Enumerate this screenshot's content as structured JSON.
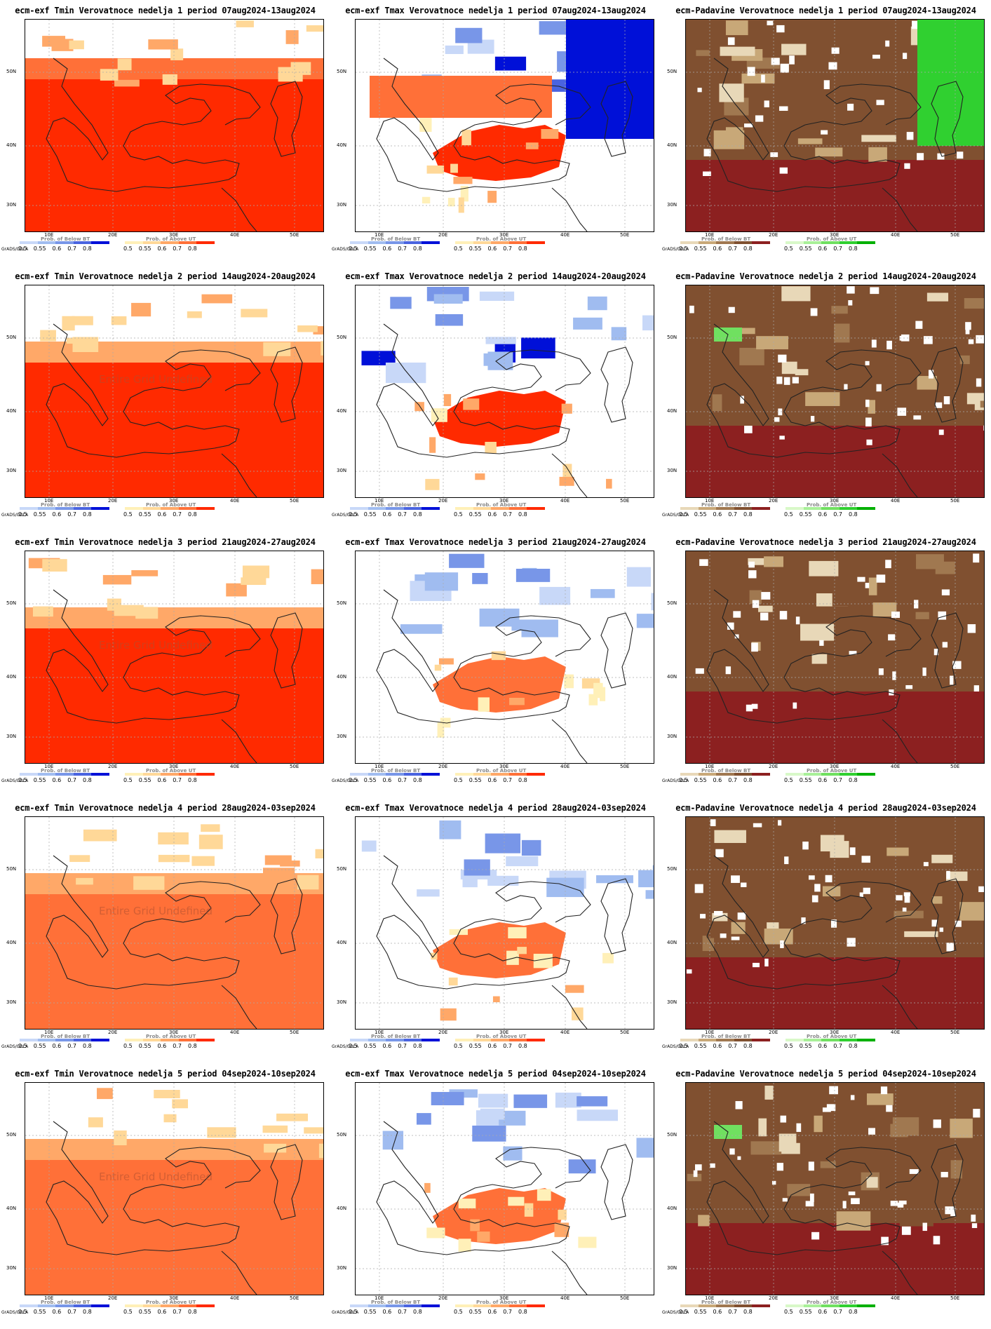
{
  "lat_labels": [
    "50N",
    "40N",
    "30N"
  ],
  "lon_labels": [
    "10E",
    "20E",
    "30E",
    "40E",
    "50E"
  ],
  "grads_label": "GrADS/COLA",
  "legend_ticks": [
    "0.5",
    "0.55",
    "0.6",
    "0.7",
    "0.8"
  ],
  "legend_below_title": "Prob. of Below BT",
  "legend_above_title": "Prob. of Above UT",
  "legend_dry_title": "Prob. of Below BT",
  "legend_wet_title": "Prob. of Above UT",
  "undefined_text": "Entire Grid Undefined",
  "colors": {
    "below": [
      "#c8d8f8",
      "#a0bcf0",
      "#7896e8",
      "#4a64e0",
      "#0010d8"
    ],
    "above": [
      "#fff0b8",
      "#ffd898",
      "#ffa868",
      "#ff7038",
      "#ff2a00"
    ],
    "dry": [
      "#e8d8b8",
      "#c8a878",
      "#a07850",
      "#805030",
      "#8c2020"
    ],
    "wet": [
      "#d8f8c8",
      "#a8f098",
      "#70e060",
      "#30d030",
      "#00b000"
    ]
  },
  "panels": [
    {
      "title": "ecm-exf Tmin Verovatnoce nedelja 1 period 07aug2024-13aug2024",
      "var": "tmin",
      "week": 1,
      "undefined": false
    },
    {
      "title": "ecm-exf Tmax Verovatnoce nedelja 1 period 07aug2024-13aug2024",
      "var": "tmax",
      "week": 1,
      "undefined": false
    },
    {
      "title": "ecm-Padavine Verovatnoce nedelja 1 period 07aug2024-13aug2024",
      "var": "prec",
      "week": 1,
      "undefined": false
    },
    {
      "title": "ecm-exf Tmin Verovatnoce nedelja 2 period 14aug2024-20aug2024",
      "var": "tmin",
      "week": 2,
      "undefined": true
    },
    {
      "title": "ecm-exf Tmax Verovatnoce nedelja 2 period 14aug2024-20aug2024",
      "var": "tmax",
      "week": 2,
      "undefined": false
    },
    {
      "title": "ecm-Padavine Verovatnoce nedelja 2 period 14aug2024-20aug2024",
      "var": "prec",
      "week": 2,
      "undefined": false
    },
    {
      "title": "ecm-exf Tmin Verovatnoce nedelja 3 period 21aug2024-27aug2024",
      "var": "tmin",
      "week": 3,
      "undefined": true
    },
    {
      "title": "ecm-exf Tmax Verovatnoce nedelja 3 period 21aug2024-27aug2024",
      "var": "tmax",
      "week": 3,
      "undefined": false
    },
    {
      "title": "ecm-Padavine Verovatnoce nedelja 3 period 21aug2024-27aug2024",
      "var": "prec",
      "week": 3,
      "undefined": false
    },
    {
      "title": "ecm-exf Tmin Verovatnoce nedelja 4 period 28aug2024-03sep2024",
      "var": "tmin",
      "week": 4,
      "undefined": true
    },
    {
      "title": "ecm-exf Tmax Verovatnoce nedelja 4 period 28aug2024-03sep2024",
      "var": "tmax",
      "week": 4,
      "undefined": false
    },
    {
      "title": "ecm-Padavine Verovatnoce nedelja 4 period 28aug2024-03sep2024",
      "var": "prec",
      "week": 4,
      "undefined": false
    },
    {
      "title": "ecm-exf Tmin Verovatnoce nedelja 5 period 04sep2024-10sep2024",
      "var": "tmin",
      "week": 5,
      "undefined": true
    },
    {
      "title": "ecm-exf Tmax Verovatnoce nedelja 5 period 04sep2024-10sep2024",
      "var": "tmax",
      "week": 5,
      "undefined": false
    },
    {
      "title": "ecm-Padavine Verovatnoce nedelja 5 period 04sep2024-10sep2024",
      "var": "prec",
      "week": 5,
      "undefined": false
    }
  ]
}
